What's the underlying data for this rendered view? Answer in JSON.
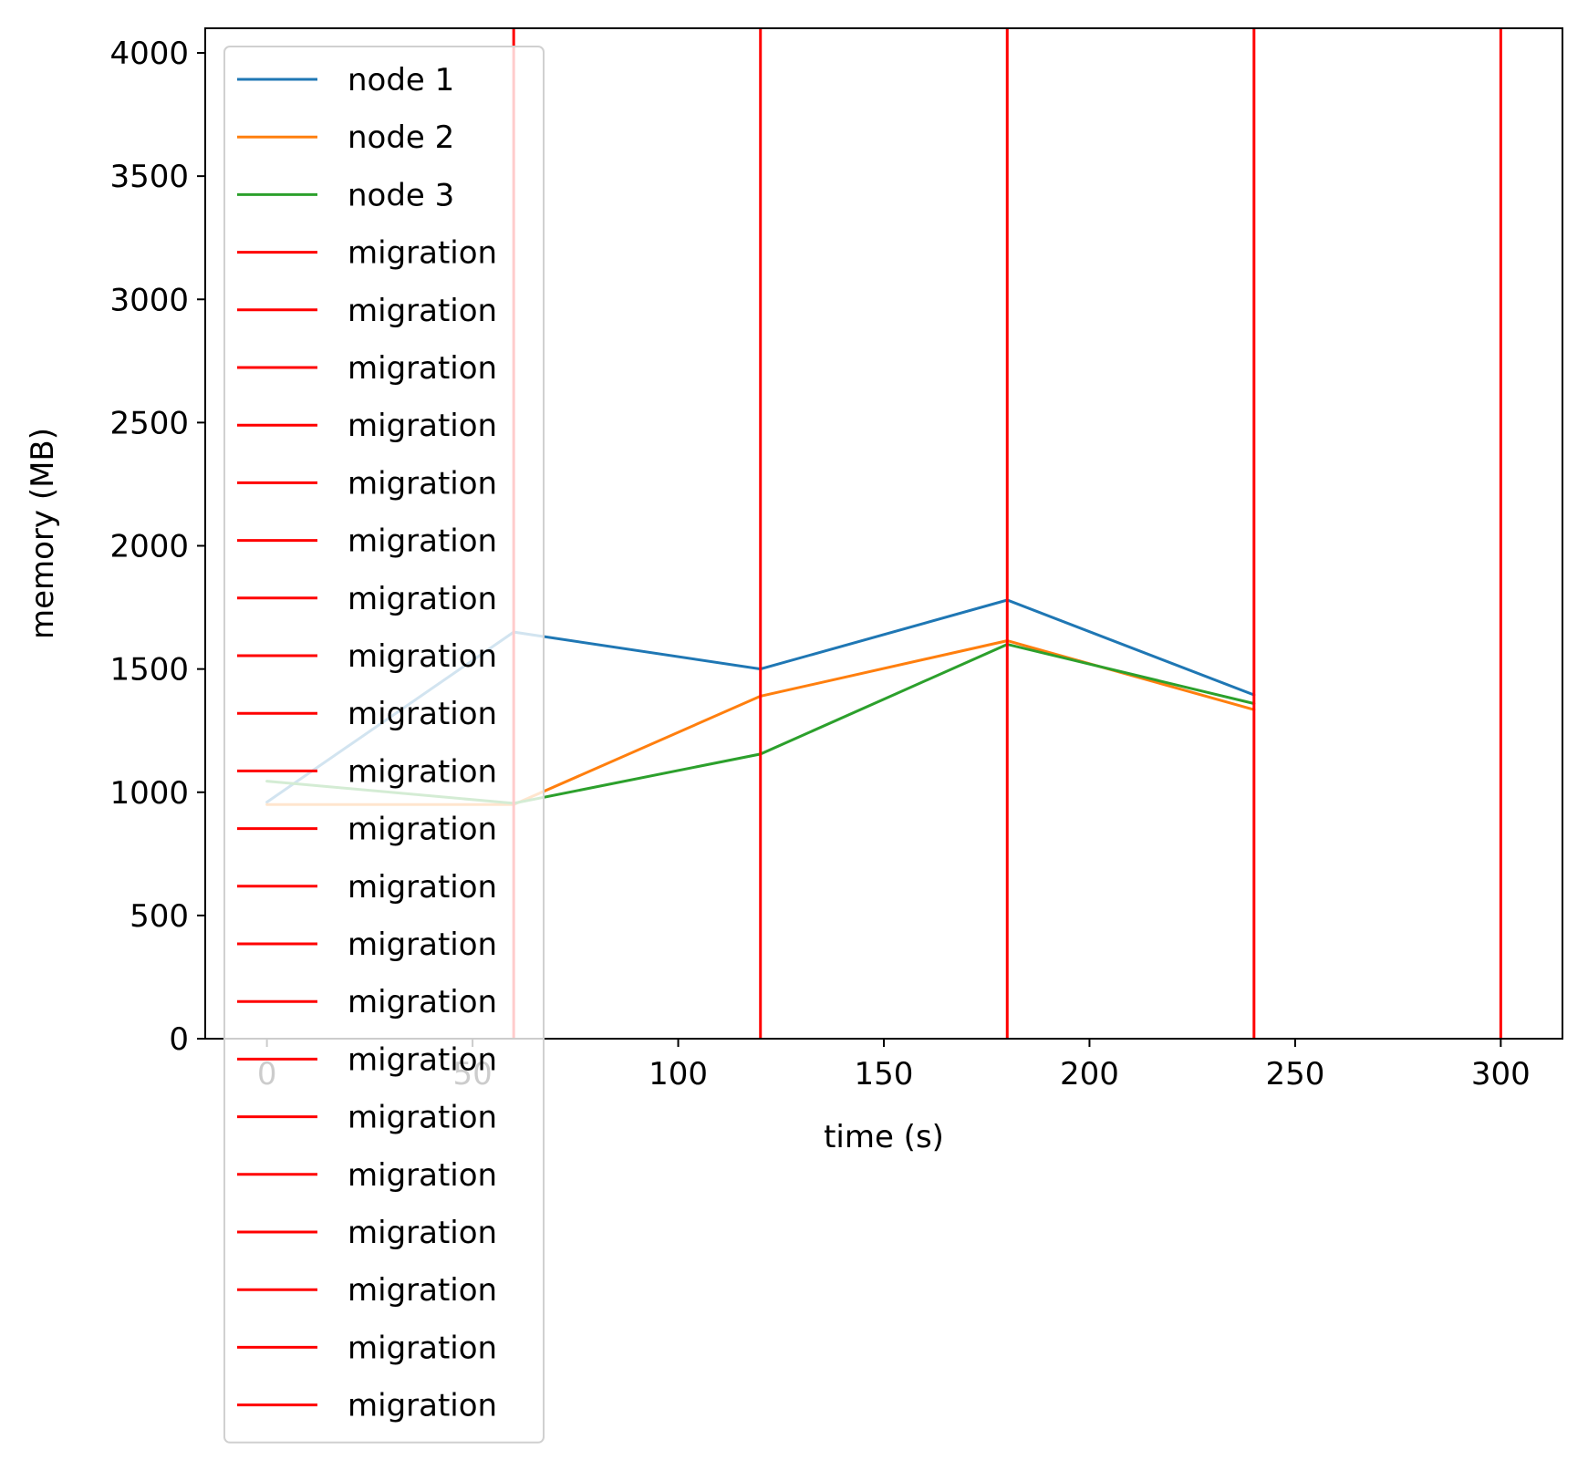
{
  "chart_data": {
    "type": "line",
    "title": "",
    "xlabel": "time (s)",
    "ylabel": "memory (MB)",
    "xlim": [
      -15,
      315
    ],
    "ylim": [
      0,
      4100
    ],
    "xticks": [
      0,
      50,
      100,
      150,
      200,
      250,
      300
    ],
    "yticks": [
      0,
      500,
      1000,
      1500,
      2000,
      2500,
      3000,
      3500,
      4000
    ],
    "grid": false,
    "legend_position": "upper-left",
    "series": [
      {
        "name": "node 1",
        "color": "#1f77b4",
        "x": [
          0,
          60,
          120,
          180,
          240
        ],
        "y": [
          960,
          1650,
          1500,
          1780,
          1395
        ]
      },
      {
        "name": "node 2",
        "color": "#ff7f0e",
        "x": [
          0,
          60,
          120,
          180,
          240
        ],
        "y": [
          950,
          950,
          1390,
          1615,
          1335
        ]
      },
      {
        "name": "node 3",
        "color": "#2ca02c",
        "x": [
          0,
          60,
          120,
          180,
          240
        ],
        "y": [
          1045,
          955,
          1155,
          1600,
          1360
        ]
      }
    ],
    "vlines": {
      "name": "migration",
      "color": "#ff0000",
      "x": [
        60,
        120,
        180,
        240,
        300
      ]
    },
    "legend": [
      "node 1",
      "node 2",
      "node 3",
      "migration",
      "migration",
      "migration",
      "migration",
      "migration",
      "migration",
      "migration",
      "migration",
      "migration",
      "migration",
      "migration",
      "migration",
      "migration",
      "migration",
      "migration",
      "migration",
      "migration",
      "migration",
      "migration",
      "migration",
      "migration"
    ]
  }
}
